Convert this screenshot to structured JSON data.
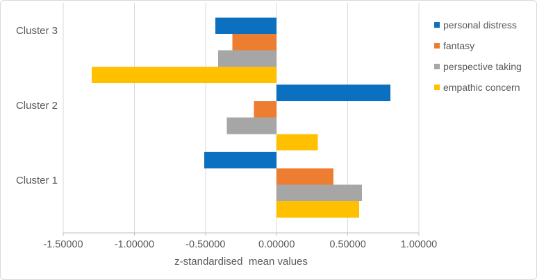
{
  "chart_data": {
    "type": "bar",
    "orientation": "horizontal",
    "title": "",
    "xlabel": "z-standardised  mean values",
    "ylabel": "",
    "categories_top_to_bottom": [
      "Cluster 3",
      "Cluster 2",
      "Cluster 1"
    ],
    "series": [
      {
        "name": "personal distress",
        "color": "#0B70C0",
        "values": [
          -0.43,
          0.8,
          -0.51
        ]
      },
      {
        "name": "fantasy",
        "color": "#ED7D31",
        "values": [
          -0.31,
          -0.16,
          0.4
        ]
      },
      {
        "name": "perspective taking",
        "color": "#A6A6A6",
        "values": [
          -0.41,
          -0.35,
          0.6
        ]
      },
      {
        "name": "empathic concern",
        "color": "#FFC000",
        "values": [
          -1.3,
          0.29,
          0.58
        ]
      }
    ],
    "xlim": [
      -1.5,
      1.0
    ],
    "x_ticks": [
      -1.5,
      -1.0,
      -0.5,
      0.0,
      0.5,
      1.0
    ],
    "x_tick_labels": [
      "-1.50000",
      "-1.00000",
      "-0.50000",
      "0.00000",
      "0.50000",
      "1.00000"
    ],
    "grid": true,
    "legend_position": "right",
    "colors": {
      "gridline": "#D9D9D9",
      "axis_line": "#BFBFBF",
      "text": "#595959",
      "frame_border": "#D9D9D9",
      "background": "#FFFFFF"
    }
  }
}
